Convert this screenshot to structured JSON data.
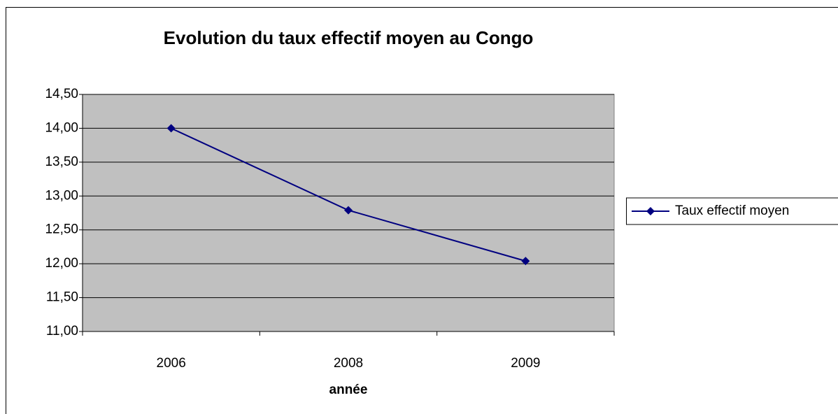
{
  "chart_data": {
    "type": "line",
    "title": "Evolution du taux effectif moyen au Congo",
    "x_label": "année",
    "categories": [
      "2006",
      "2008",
      "2009"
    ],
    "series": [
      {
        "name": "Taux effectif moyen",
        "color": "#000080",
        "values": [
          14.0,
          12.79,
          12.04
        ]
      }
    ],
    "ylim": [
      11,
      14.5
    ],
    "yticks": [
      {
        "value": 11,
        "label": "11,00"
      },
      {
        "value": 11.5,
        "label": "11,50"
      },
      {
        "value": 12,
        "label": "12,00"
      },
      {
        "value": 12.5,
        "label": "12,50"
      },
      {
        "value": 13,
        "label": "13,00"
      },
      {
        "value": 13.5,
        "label": "13,50"
      },
      {
        "value": 14,
        "label": "14,00"
      },
      {
        "value": 14.5,
        "label": "14,50"
      }
    ],
    "grid": true,
    "legend": "right"
  }
}
